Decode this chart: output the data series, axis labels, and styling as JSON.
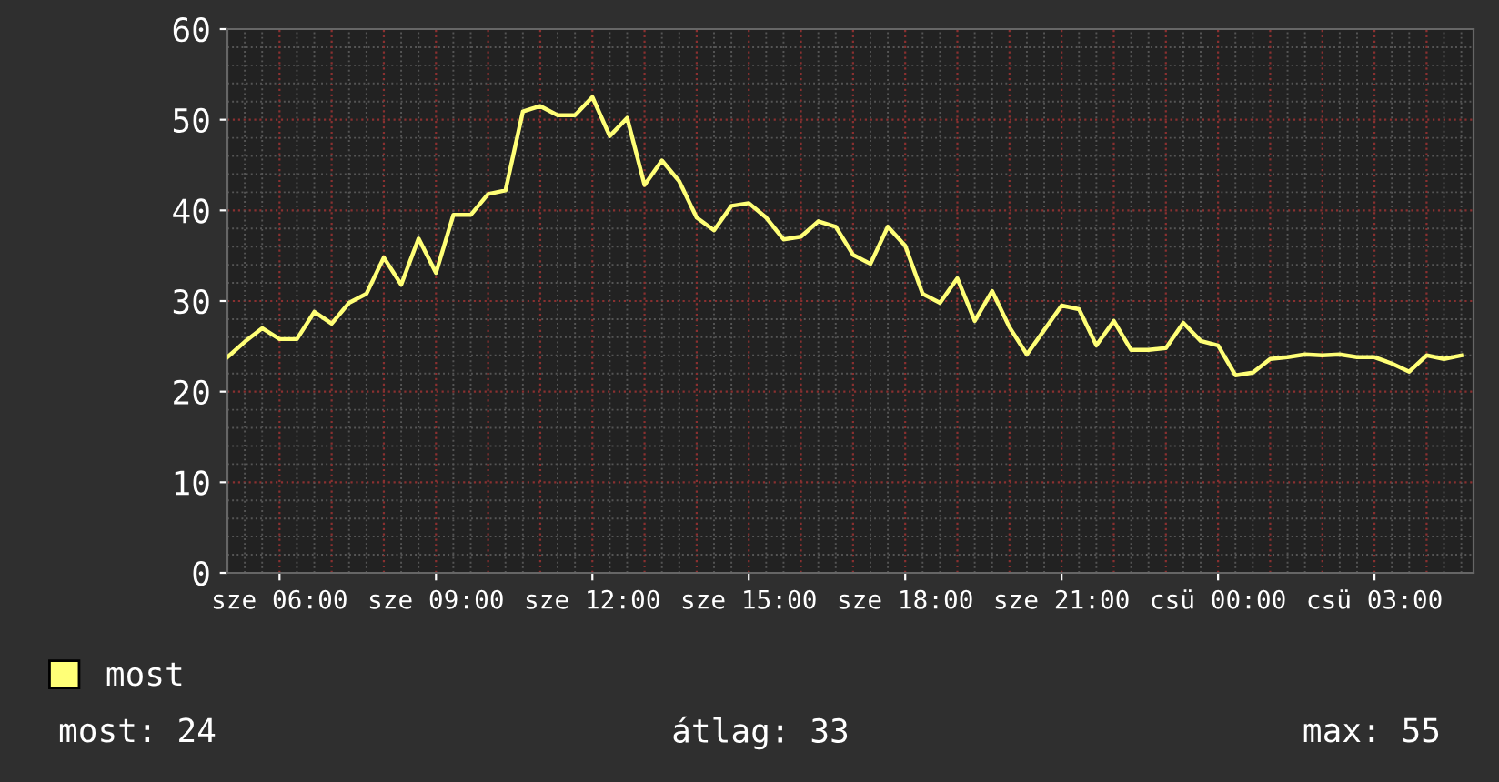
{
  "chart_data": {
    "type": "line",
    "categories": [
      null,
      null,
      null,
      "sze 06:00",
      null,
      null,
      null,
      null,
      null,
      null,
      null,
      null,
      "sze 09:00",
      null,
      null,
      null,
      null,
      null,
      null,
      null,
      null,
      "sze 12:00",
      null,
      null,
      null,
      null,
      null,
      null,
      null,
      null,
      "sze 15:00",
      null,
      null,
      null,
      null,
      null,
      null,
      null,
      null,
      "sze 18:00",
      null,
      null,
      null,
      null,
      null,
      null,
      null,
      null,
      "sze 21:00",
      null,
      null,
      null,
      null,
      null,
      null,
      null,
      null,
      "csü 00:00",
      null,
      null,
      null,
      null,
      null,
      null,
      null,
      null,
      "csü 03:00",
      null,
      null,
      null,
      null,
      null
    ],
    "series": [
      {
        "name": "most",
        "color": "#ffff77",
        "values": [
          23.8,
          25.5,
          27.0,
          25.8,
          25.8,
          28.8,
          27.5,
          29.8,
          30.8,
          34.8,
          31.8,
          36.9,
          33.1,
          39.5,
          39.5,
          41.8,
          42.2,
          50.9,
          51.5,
          50.5,
          50.5,
          52.5,
          48.2,
          50.2,
          42.8,
          45.5,
          43.2,
          39.2,
          37.8,
          40.5,
          40.8,
          39.2,
          36.8,
          37.1,
          38.8,
          38.2,
          35.1,
          34.1,
          38.2,
          36.1,
          30.8,
          29.8,
          32.5,
          27.8,
          31.1,
          27.1,
          24.1,
          26.8,
          29.5,
          29.1,
          25.1,
          27.8,
          24.6,
          24.6,
          24.8,
          27.6,
          25.6,
          25.1,
          21.8,
          22.1,
          23.6,
          23.8,
          24.1,
          24.0,
          24.1,
          23.8,
          23.8,
          23.1,
          22.2,
          24.0,
          23.6,
          24.0
        ]
      }
    ],
    "ylim": [
      0,
      60
    ],
    "yticks": [
      0,
      10,
      20,
      30,
      40,
      50,
      60
    ],
    "grid": true,
    "legend": "bottom left",
    "line_style": "solid",
    "annotations": [
      "most: 24",
      "átlag: 33",
      "max: 55"
    ]
  }
}
